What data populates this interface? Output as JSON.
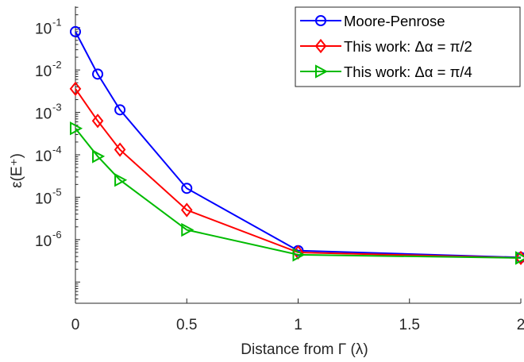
{
  "chart_data": {
    "type": "line",
    "xlabel": "Distance from Γ (λ)",
    "ylabel": "ε(E⁺)",
    "xlim": [
      0,
      2
    ],
    "ylim_log10": [
      -7.5,
      -0.5
    ],
    "y_scale": "log",
    "x_ticks": [
      0,
      0.5,
      1,
      1.5,
      2
    ],
    "x_tick_labels": [
      "0",
      "0.5",
      "1",
      "1.5",
      "2"
    ],
    "y_tick_exponents": [
      -6,
      -5,
      -4,
      -3,
      -2,
      -1
    ],
    "y_tick_base": "10",
    "grid": false,
    "legend_position": "top-right",
    "x": [
      0,
      0.1,
      0.2,
      0.5,
      1,
      2
    ],
    "series": [
      {
        "name": "Moore-Penrose",
        "color": "#0000ff",
        "marker": "circle",
        "values": [
          0.08,
          0.008,
          0.00115,
          1.62e-05,
          5.5e-07,
          3.8e-07
        ]
      },
      {
        "name": "This work: Δα = π/2",
        "color": "#ff0000",
        "marker": "diamond",
        "values": [
          0.0036,
          0.00063,
          0.000132,
          5e-06,
          5e-07,
          3.7e-07
        ]
      },
      {
        "name": "This work: Δα = π/4",
        "color": "#00bb00",
        "marker": "triangle-right",
        "values": [
          0.00042,
          9.2e-05,
          2.55e-05,
          1.7e-06,
          4.4e-07,
          3.7e-07
        ]
      }
    ]
  }
}
